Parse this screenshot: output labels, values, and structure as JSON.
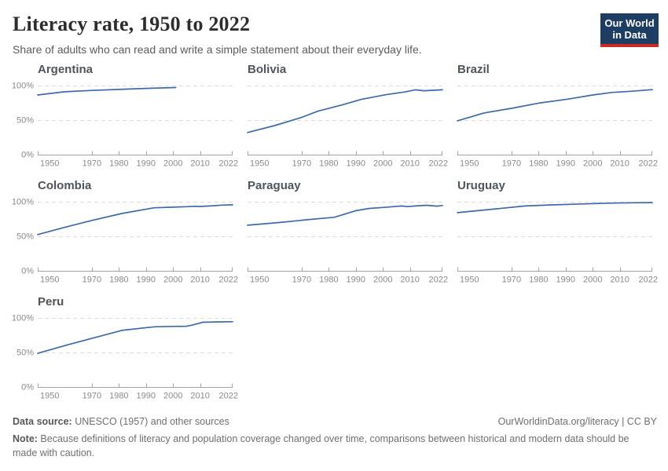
{
  "header": {
    "title": "Literacy rate, 1950 to 2022",
    "subtitle": "Share of adults who can read and write a simple statement about their everyday life."
  },
  "logo": {
    "line1": "Our World",
    "line2": "in Data",
    "bg_color": "#1d3d63",
    "accent_color": "#cb2a22"
  },
  "footer": {
    "datasource_label": "Data source:",
    "datasource_text": " UNESCO (1957) and other sources",
    "link_text": "OurWorldinData.org/literacy | CC BY",
    "note_label": "Note:",
    "note_text": " Because definitions of literacy and population coverage changed over time, comparisons between historical and modern data should be made with caution."
  },
  "chart_data": {
    "type": "line",
    "layout": "small-multiples, 3 columns",
    "title": "Literacy rate, 1950 to 2022",
    "xlabel": "",
    "ylabel": "",
    "x_domain": [
      1950,
      2022
    ],
    "y_domain": [
      0,
      100
    ],
    "x_ticks": [
      1950,
      1970,
      1980,
      1990,
      2000,
      2010,
      2022
    ],
    "y_ticks": [
      0,
      50,
      100
    ],
    "y_tick_labels": [
      "0%",
      "50%",
      "100%"
    ],
    "grid": "dashed horizontal gridlines at 50% and 100%, solid axis at 0%",
    "legend": "none",
    "line_color": "#3d6aa8",
    "grid_color": "#dcdcdc",
    "axis_color": "#a3a3a3",
    "facets": [
      {
        "title": "Argentina",
        "points": [
          [
            1950,
            86.4
          ],
          [
            1960,
            91.0
          ],
          [
            1970,
            92.9
          ],
          [
            1980,
            94.4
          ],
          [
            1991,
            96.0
          ],
          [
            2001,
            97.2
          ]
        ]
      },
      {
        "title": "Bolivia",
        "points": [
          [
            1950,
            32.1
          ],
          [
            1960,
            42.0
          ],
          [
            1970,
            54.0
          ],
          [
            1976,
            63.0
          ],
          [
            1985,
            72.0
          ],
          [
            1992,
            80.0
          ],
          [
            2001,
            86.7
          ],
          [
            2008,
            90.7
          ],
          [
            2012,
            93.9
          ],
          [
            2015,
            92.5
          ],
          [
            2022,
            93.9
          ]
        ]
      },
      {
        "title": "Brazil",
        "points": [
          [
            1950,
            49.0
          ],
          [
            1960,
            60.5
          ],
          [
            1970,
            67.0
          ],
          [
            1980,
            74.5
          ],
          [
            1991,
            80.5
          ],
          [
            2000,
            86.4
          ],
          [
            2007,
            90.0
          ],
          [
            2014,
            91.7
          ],
          [
            2022,
            94.1
          ]
        ]
      },
      {
        "title": "Colombia",
        "points": [
          [
            1950,
            52.5
          ],
          [
            1960,
            63.0
          ],
          [
            1970,
            73.0
          ],
          [
            1981,
            83.0
          ],
          [
            1993,
            91.3
          ],
          [
            2000,
            92.2
          ],
          [
            2005,
            92.8
          ],
          [
            2008,
            93.4
          ],
          [
            2010,
            93.2
          ],
          [
            2015,
            94.2
          ],
          [
            2018,
            95.1
          ],
          [
            2022,
            95.6
          ]
        ]
      },
      {
        "title": "Paraguay",
        "points": [
          [
            1950,
            66.0
          ],
          [
            1962,
            70.0
          ],
          [
            1972,
            74.0
          ],
          [
            1982,
            77.5
          ],
          [
            1990,
            87.0
          ],
          [
            1995,
            90.3
          ],
          [
            2000,
            91.7
          ],
          [
            2004,
            93.0
          ],
          [
            2007,
            93.9
          ],
          [
            2009,
            92.9
          ],
          [
            2012,
            93.9
          ],
          [
            2016,
            94.9
          ],
          [
            2020,
            93.6
          ],
          [
            2022,
            94.5
          ]
        ]
      },
      {
        "title": "Uruguay",
        "points": [
          [
            1950,
            84.2
          ],
          [
            1963,
            89.2
          ],
          [
            1975,
            93.9
          ],
          [
            1985,
            95.4
          ],
          [
            1996,
            96.8
          ],
          [
            2006,
            97.9
          ],
          [
            2015,
            98.5
          ],
          [
            2022,
            98.8
          ]
        ]
      },
      {
        "title": "Peru",
        "points": [
          [
            1950,
            48.7
          ],
          [
            1961,
            61.0
          ],
          [
            1972,
            72.5
          ],
          [
            1981,
            81.9
          ],
          [
            1993,
            87.2
          ],
          [
            2000,
            87.7
          ],
          [
            2005,
            88.0
          ],
          [
            2007,
            89.6
          ],
          [
            2011,
            93.8
          ],
          [
            2016,
            94.2
          ],
          [
            2022,
            94.5
          ]
        ]
      }
    ]
  }
}
